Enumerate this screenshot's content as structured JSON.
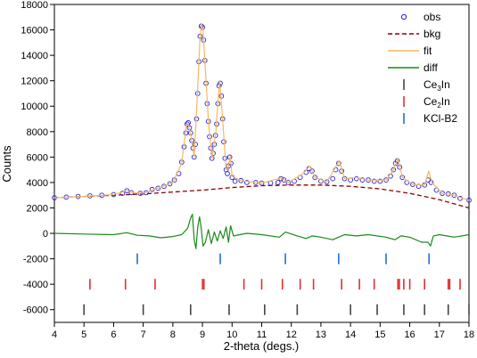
{
  "chart_data": {
    "type": "line",
    "title": "",
    "xlabel": "2-theta (degs.)",
    "ylabel": "Counts",
    "xlim": [
      4,
      18
    ],
    "ylim": [
      -7000,
      18000
    ],
    "grid": false,
    "legend_position": "top-right",
    "x_ticks": [
      4,
      5,
      6,
      7,
      8,
      9,
      10,
      11,
      12,
      13,
      14,
      15,
      16,
      17,
      18
    ],
    "y_ticks": [
      -6000,
      -4000,
      -2000,
      0,
      2000,
      4000,
      6000,
      8000,
      10000,
      12000,
      14000,
      16000,
      18000
    ],
    "series": [
      {
        "name": "obs",
        "kind": "markers",
        "marker": "open-circle",
        "color": "#1f1fd6",
        "points": [
          [
            4.0,
            2800
          ],
          [
            4.4,
            2850
          ],
          [
            4.8,
            2900
          ],
          [
            5.2,
            2950
          ],
          [
            5.6,
            3000
          ],
          [
            6.0,
            3050
          ],
          [
            6.3,
            3150
          ],
          [
            6.45,
            3350
          ],
          [
            6.6,
            3200
          ],
          [
            6.9,
            3150
          ],
          [
            7.1,
            3200
          ],
          [
            7.3,
            3450
          ],
          [
            7.5,
            3550
          ],
          [
            7.7,
            3700
          ],
          [
            7.9,
            3900
          ],
          [
            8.05,
            4200
          ],
          [
            8.2,
            4700
          ],
          [
            8.3,
            5600
          ],
          [
            8.38,
            6800
          ],
          [
            8.44,
            7900
          ],
          [
            8.48,
            8600
          ],
          [
            8.52,
            8700
          ],
          [
            8.56,
            8300
          ],
          [
            8.6,
            7900
          ],
          [
            8.64,
            7300
          ],
          [
            8.68,
            6700
          ],
          [
            8.72,
            6000
          ],
          [
            8.76,
            7000
          ],
          [
            8.8,
            9000
          ],
          [
            8.84,
            11000
          ],
          [
            8.88,
            13500
          ],
          [
            8.92,
            15500
          ],
          [
            8.96,
            16300
          ],
          [
            9.0,
            16200
          ],
          [
            9.04,
            15200
          ],
          [
            9.08,
            13600
          ],
          [
            9.12,
            11800
          ],
          [
            9.16,
            10200
          ],
          [
            9.2,
            8800
          ],
          [
            9.24,
            7600
          ],
          [
            9.28,
            6700
          ],
          [
            9.32,
            5900
          ],
          [
            9.36,
            6300
          ],
          [
            9.4,
            7000
          ],
          [
            9.44,
            7700
          ],
          [
            9.48,
            8600
          ],
          [
            9.52,
            10200
          ],
          [
            9.56,
            11600
          ],
          [
            9.6,
            11800
          ],
          [
            9.64,
            10800
          ],
          [
            9.68,
            9000
          ],
          [
            9.72,
            7200
          ],
          [
            9.76,
            5900
          ],
          [
            9.8,
            5000
          ],
          [
            9.84,
            4700
          ],
          [
            9.88,
            5300
          ],
          [
            9.92,
            6000
          ],
          [
            9.96,
            5500
          ],
          [
            10.0,
            4400
          ],
          [
            10.1,
            4100
          ],
          [
            10.3,
            4150
          ],
          [
            10.5,
            4000
          ],
          [
            10.8,
            4000
          ],
          [
            11.0,
            3950
          ],
          [
            11.3,
            3950
          ],
          [
            11.55,
            4000
          ],
          [
            11.65,
            4300
          ],
          [
            11.75,
            4200
          ],
          [
            11.9,
            4000
          ],
          [
            12.1,
            4100
          ],
          [
            12.3,
            4400
          ],
          [
            12.5,
            4800
          ],
          [
            12.6,
            5100
          ],
          [
            12.7,
            4900
          ],
          [
            12.8,
            4400
          ],
          [
            13.0,
            4100
          ],
          [
            13.2,
            4050
          ],
          [
            13.4,
            4300
          ],
          [
            13.5,
            5000
          ],
          [
            13.6,
            5500
          ],
          [
            13.7,
            4900
          ],
          [
            13.8,
            4300
          ],
          [
            14.0,
            4200
          ],
          [
            14.2,
            4300
          ],
          [
            14.4,
            4200
          ],
          [
            14.6,
            4200
          ],
          [
            14.8,
            4100
          ],
          [
            15.0,
            4100
          ],
          [
            15.2,
            4200
          ],
          [
            15.35,
            4500
          ],
          [
            15.45,
            5000
          ],
          [
            15.52,
            5500
          ],
          [
            15.58,
            5700
          ],
          [
            15.66,
            5200
          ],
          [
            15.75,
            4400
          ],
          [
            15.9,
            4000
          ],
          [
            16.1,
            3850
          ],
          [
            16.3,
            3700
          ],
          [
            16.5,
            3800
          ],
          [
            16.62,
            4200
          ],
          [
            16.72,
            4000
          ],
          [
            16.9,
            3400
          ],
          [
            17.1,
            3150
          ],
          [
            17.3,
            3100
          ],
          [
            17.5,
            3000
          ],
          [
            17.7,
            2750
          ],
          [
            18.0,
            2600
          ]
        ]
      },
      {
        "name": "bkg",
        "kind": "dashed-line",
        "color": "#8b0000",
        "points": [
          [
            4.0,
            2800
          ],
          [
            5.0,
            2900
          ],
          [
            6.0,
            3000
          ],
          [
            7.0,
            3100
          ],
          [
            8.0,
            3250
          ],
          [
            9.0,
            3400
          ],
          [
            10.0,
            3600
          ],
          [
            11.0,
            3750
          ],
          [
            12.0,
            3800
          ],
          [
            13.0,
            3800
          ],
          [
            14.0,
            3700
          ],
          [
            15.0,
            3500
          ],
          [
            16.0,
            3150
          ],
          [
            17.0,
            2650
          ],
          [
            18.0,
            2000
          ]
        ]
      },
      {
        "name": "fit",
        "kind": "line",
        "color": "#f5b860",
        "points": [
          [
            4.0,
            2800
          ],
          [
            5.0,
            2900
          ],
          [
            6.0,
            3050
          ],
          [
            6.45,
            3350
          ],
          [
            6.6,
            3200
          ],
          [
            7.0,
            3150
          ],
          [
            7.5,
            3550
          ],
          [
            8.0,
            4000
          ],
          [
            8.3,
            5500
          ],
          [
            8.45,
            8400
          ],
          [
            8.52,
            8600
          ],
          [
            8.62,
            7500
          ],
          [
            8.72,
            6000
          ],
          [
            8.82,
            10500
          ],
          [
            8.92,
            15500
          ],
          [
            8.97,
            16500
          ],
          [
            9.02,
            16000
          ],
          [
            9.1,
            12800
          ],
          [
            9.2,
            8900
          ],
          [
            9.32,
            5900
          ],
          [
            9.45,
            7900
          ],
          [
            9.58,
            12000
          ],
          [
            9.68,
            9000
          ],
          [
            9.8,
            5000
          ],
          [
            9.88,
            5200
          ],
          [
            9.94,
            6100
          ],
          [
            10.0,
            4500
          ],
          [
            10.3,
            4150
          ],
          [
            11.0,
            3950
          ],
          [
            11.65,
            4350
          ],
          [
            11.9,
            4000
          ],
          [
            12.4,
            4700
          ],
          [
            12.62,
            5300
          ],
          [
            12.8,
            4400
          ],
          [
            13.2,
            4050
          ],
          [
            13.62,
            5700
          ],
          [
            13.8,
            4300
          ],
          [
            14.2,
            4400
          ],
          [
            14.6,
            4200
          ],
          [
            15.2,
            4200
          ],
          [
            15.45,
            5000
          ],
          [
            15.6,
            5900
          ],
          [
            15.75,
            4400
          ],
          [
            16.1,
            3850
          ],
          [
            16.5,
            3800
          ],
          [
            16.64,
            4900
          ],
          [
            16.75,
            4000
          ],
          [
            17.1,
            3150
          ],
          [
            17.5,
            3000
          ],
          [
            18.0,
            2600
          ]
        ]
      },
      {
        "name": "diff",
        "kind": "line",
        "color": "#1a8a1a",
        "points": [
          [
            4.0,
            0
          ],
          [
            5.0,
            -50
          ],
          [
            6.0,
            -100
          ],
          [
            6.45,
            50
          ],
          [
            6.8,
            -150
          ],
          [
            7.2,
            -200
          ],
          [
            7.6,
            -350
          ],
          [
            8.0,
            -250
          ],
          [
            8.3,
            -100
          ],
          [
            8.5,
            400
          ],
          [
            8.6,
            1200
          ],
          [
            8.66,
            1500
          ],
          [
            8.72,
            -500
          ],
          [
            8.78,
            -1200
          ],
          [
            8.84,
            500
          ],
          [
            8.9,
            1300
          ],
          [
            8.96,
            400
          ],
          [
            9.02,
            -1000
          ],
          [
            9.1,
            -700
          ],
          [
            9.2,
            300
          ],
          [
            9.3,
            -800
          ],
          [
            9.4,
            100
          ],
          [
            9.5,
            -600
          ],
          [
            9.6,
            200
          ],
          [
            9.7,
            -400
          ],
          [
            9.8,
            500
          ],
          [
            9.88,
            -700
          ],
          [
            9.95,
            600
          ],
          [
            10.05,
            -200
          ],
          [
            10.5,
            0
          ],
          [
            11.0,
            -100
          ],
          [
            11.6,
            -300
          ],
          [
            11.8,
            100
          ],
          [
            12.2,
            -200
          ],
          [
            12.5,
            -400
          ],
          [
            12.7,
            -200
          ],
          [
            13.0,
            -300
          ],
          [
            13.4,
            -500
          ],
          [
            13.6,
            -300
          ],
          [
            13.8,
            -100
          ],
          [
            14.2,
            -200
          ],
          [
            14.6,
            -100
          ],
          [
            15.2,
            -300
          ],
          [
            15.5,
            -500
          ],
          [
            15.7,
            -200
          ],
          [
            16.0,
            -300
          ],
          [
            16.4,
            -700
          ],
          [
            16.62,
            -700
          ],
          [
            16.7,
            -1000
          ],
          [
            16.8,
            -200
          ],
          [
            17.0,
            -100
          ],
          [
            17.5,
            -300
          ],
          [
            18.0,
            -100
          ]
        ]
      },
      {
        "name": "Ce3In",
        "name_display": {
          "base": "Ce",
          "sub": "3",
          "suffix": "In"
        },
        "kind": "ticks",
        "color": "#444444",
        "y": -6000,
        "positions": [
          5.0,
          7.0,
          8.6,
          9.9,
          11.1,
          12.2,
          14.0,
          14.9,
          15.8,
          16.5,
          17.3,
          18.0
        ]
      },
      {
        "name": "Ce2In",
        "name_display": {
          "base": "Ce",
          "sub": "2",
          "suffix": "In"
        },
        "kind": "ticks",
        "color": "#e03030",
        "y": -4000,
        "positions": [
          5.2,
          6.4,
          7.4,
          9.0,
          9.05,
          10.4,
          11.0,
          11.7,
          12.3,
          12.75,
          13.7,
          14.3,
          14.8,
          15.6,
          15.65,
          15.8,
          16.0,
          16.5,
          17.3,
          17.35,
          17.7
        ]
      },
      {
        "name": "KCl-B2",
        "kind": "ticks",
        "color": "#1f6fd6",
        "y": -2000,
        "positions": [
          6.8,
          9.6,
          11.8,
          13.6,
          15.2,
          16.65
        ]
      }
    ]
  }
}
